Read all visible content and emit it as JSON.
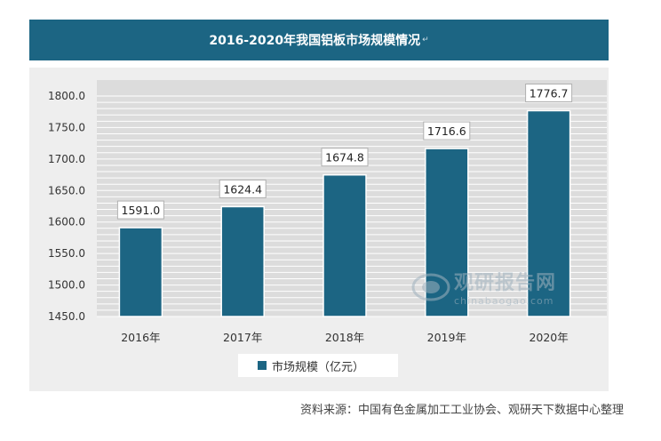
{
  "title": "2016-2020年我国铝板市场规模情况",
  "title_mark": "↵",
  "source": "资料来源：中国有色金属加工工业协会、观研天下数据中心整理",
  "watermark": {
    "name": "观研报告网",
    "domain": "chinabaogao.com"
  },
  "colors": {
    "bar": "#1c6583",
    "banner": "#1c6583"
  },
  "chart_data": {
    "type": "bar",
    "categories": [
      "2016年",
      "2017年",
      "2018年",
      "2019年",
      "2020年"
    ],
    "series": [
      {
        "name": "市场规模（亿元）",
        "values": [
          1591.0,
          1624.4,
          1674.8,
          1716.6,
          1776.7
        ]
      }
    ],
    "data_labels": [
      "1591.0",
      "1624.4",
      "1674.8",
      "1716.6",
      "1776.7"
    ],
    "ylim": [
      1450,
      1800
    ],
    "yticks": [
      "1450.0",
      "1500.0",
      "1550.0",
      "1600.0",
      "1650.0",
      "1700.0",
      "1750.0",
      "1800.0"
    ],
    "grid": true,
    "legend_position": "bottom"
  }
}
